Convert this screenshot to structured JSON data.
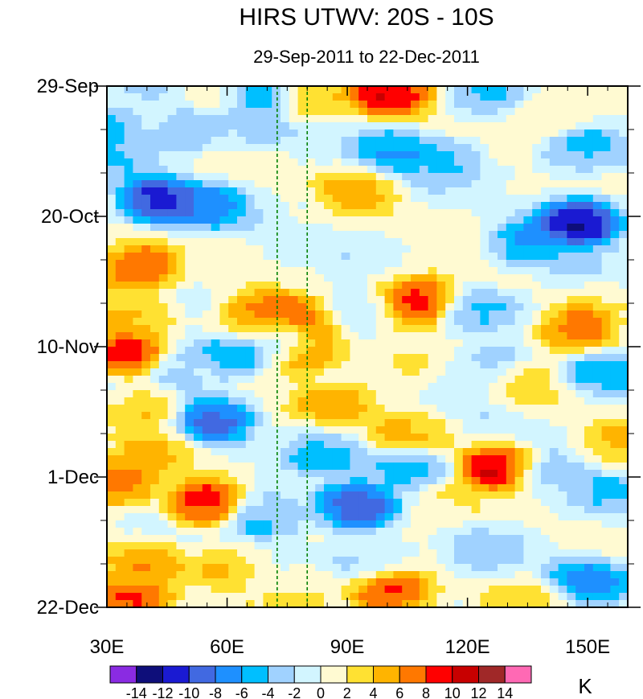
{
  "chart_data": {
    "type": "heatmap",
    "title": "HIRS UTWV: 20S - 10S",
    "subtitle": "29-Sep-2011 to 22-Dec-2011",
    "units": "K",
    "xlim": [
      30,
      160
    ],
    "x_ticks": [
      {
        "value": 30,
        "label": "30E"
      },
      {
        "value": 60,
        "label": "60E"
      },
      {
        "value": 90,
        "label": "90E"
      },
      {
        "value": 120,
        "label": "120E"
      },
      {
        "value": 150,
        "label": "150E"
      }
    ],
    "y_ticks": [
      {
        "day": 0,
        "label": "29-Sep"
      },
      {
        "day": 21,
        "label": "20-Oct"
      },
      {
        "day": 42,
        "label": "10-Nov"
      },
      {
        "day": 63,
        "label": "1-Dec"
      },
      {
        "day": 84,
        "label": "22-Dec"
      }
    ],
    "reference_longitudes": [
      72.5,
      80
    ],
    "colorbar": {
      "levels": [
        "-14",
        "-12",
        "-10",
        "-8",
        "-6",
        "-4",
        "-2",
        "0",
        "2",
        "4",
        "6",
        "8",
        "10",
        "12",
        "14"
      ],
      "colors": [
        "#8a2be2",
        "#0e0e7a",
        "#1a1ad2",
        "#4169e1",
        "#1e90ff",
        "#00bfff",
        "#a0d2ff",
        "#d2f5ff",
        "#fffad2",
        "#ffe132",
        "#ffb400",
        "#ff7800",
        "#ff0000",
        "#c80000",
        "#a02828",
        "#ff69b4"
      ]
    },
    "features": [
      {
        "lon": 31,
        "day": 6.5,
        "value": -6
      },
      {
        "lon": 33,
        "day": 10.5,
        "value": -4
      },
      {
        "lon": 43,
        "day": 18.5,
        "value": -12
      },
      {
        "lon": 55,
        "day": 19.5,
        "value": -7
      },
      {
        "lon": 41,
        "day": 2,
        "value": -3
      },
      {
        "lon": 50,
        "day": 7.5,
        "value": -5
      },
      {
        "lon": 57,
        "day": 1,
        "value": 3
      },
      {
        "lon": 67,
        "day": 0.6,
        "value": -6
      },
      {
        "lon": 66,
        "day": 7,
        "value": -3
      },
      {
        "lon": 101,
        "day": 1,
        "value": 11
      },
      {
        "lon": 103,
        "day": 10.5,
        "value": -7
      },
      {
        "lon": 115,
        "day": 11.5,
        "value": -5
      },
      {
        "lon": 93,
        "day": 16.5,
        "value": 5
      },
      {
        "lon": 83,
        "day": 2.5,
        "value": 3
      },
      {
        "lon": 148,
        "day": 22,
        "value": -14
      },
      {
        "lon": 135,
        "day": 25.5,
        "value": -7
      },
      {
        "lon": 149,
        "day": 10.5,
        "value": -5
      },
      {
        "lon": 125,
        "day": 2,
        "value": -3
      },
      {
        "lon": 140,
        "day": 5,
        "value": 3
      },
      {
        "lon": 37,
        "day": 29.5,
        "value": 10
      },
      {
        "lon": 37,
        "day": 36.5,
        "value": 5
      },
      {
        "lon": 70,
        "day": 37,
        "value": 9
      },
      {
        "lon": 78,
        "day": 38.5,
        "value": 9
      },
      {
        "lon": 66,
        "day": 38,
        "value": 6
      },
      {
        "lon": 108,
        "day": 34.5,
        "value": 11
      },
      {
        "lon": 93,
        "day": 36.5,
        "value": -3
      },
      {
        "lon": 147,
        "day": 39.5,
        "value": 9
      },
      {
        "lon": 123,
        "day": 36,
        "value": -4
      },
      {
        "lon": 143,
        "day": 29.5,
        "value": -3
      },
      {
        "lon": 34,
        "day": 43,
        "value": 10
      },
      {
        "lon": 51,
        "day": 46,
        "value": -4
      },
      {
        "lon": 61,
        "day": 43.5,
        "value": -7
      },
      {
        "lon": 79,
        "day": 42.5,
        "value": 9
      },
      {
        "lon": 74,
        "day": 41,
        "value": -5
      },
      {
        "lon": 40,
        "day": 52,
        "value": 5
      },
      {
        "lon": 56,
        "day": 53.5,
        "value": -9
      },
      {
        "lon": 87,
        "day": 51,
        "value": 6
      },
      {
        "lon": 106,
        "day": 55.5,
        "value": 5
      },
      {
        "lon": 101,
        "day": 46.5,
        "value": 3
      },
      {
        "lon": 124,
        "day": 45.5,
        "value": -4
      },
      {
        "lon": 135,
        "day": 48,
        "value": 3
      },
      {
        "lon": 153,
        "day": 46.5,
        "value": -6
      },
      {
        "lon": 157,
        "day": 58.5,
        "value": 5
      },
      {
        "lon": 42,
        "day": 58.5,
        "value": 5
      },
      {
        "lon": 33,
        "day": 64,
        "value": 9
      },
      {
        "lon": 55,
        "day": 67.5,
        "value": 10
      },
      {
        "lon": 69,
        "day": 69,
        "value": -6
      },
      {
        "lon": 92,
        "day": 68,
        "value": -11
      },
      {
        "lon": 86,
        "day": 59,
        "value": -5
      },
      {
        "lon": 106,
        "day": 61.5,
        "value": -6
      },
      {
        "lon": 128,
        "day": 61.5,
        "value": 11
      },
      {
        "lon": 140,
        "day": 63,
        "value": -4
      },
      {
        "lon": 153,
        "day": 66,
        "value": -5
      },
      {
        "lon": 115,
        "day": 67,
        "value": 3
      },
      {
        "lon": 40,
        "day": 77,
        "value": 5
      },
      {
        "lon": 60,
        "day": 77,
        "value": 5
      },
      {
        "lon": 35,
        "day": 82.5,
        "value": 10
      },
      {
        "lon": 100,
        "day": 81.5,
        "value": 10
      },
      {
        "lon": 96,
        "day": 76,
        "value": -3
      },
      {
        "lon": 124,
        "day": 76,
        "value": -3
      },
      {
        "lon": 150,
        "day": 80,
        "value": -7
      },
      {
        "lon": 136,
        "day": 83,
        "value": 3
      },
      {
        "lon": 80,
        "day": 81.5,
        "value": 3
      }
    ]
  }
}
